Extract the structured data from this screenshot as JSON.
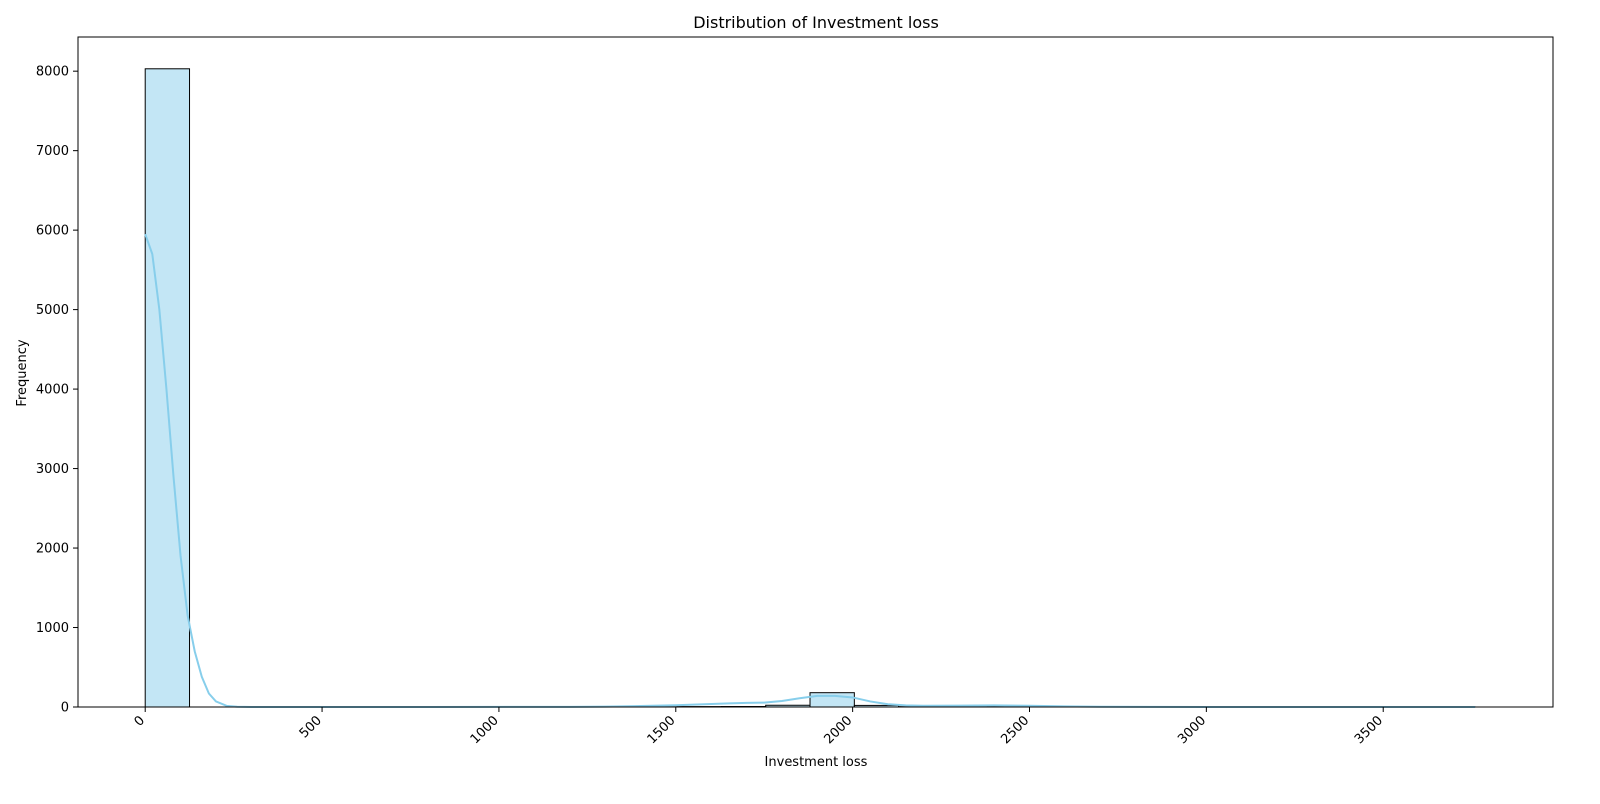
{
  "chart_data": {
    "type": "bar",
    "title": "Distribution of Investment loss",
    "xlabel": "Investment loss",
    "ylabel": "Frequency",
    "xlim": [
      -190,
      3980
    ],
    "ylim": [
      0,
      8430
    ],
    "x_ticks": [
      0,
      500,
      1000,
      1500,
      2000,
      2500,
      3000,
      3500
    ],
    "y_ticks": [
      0,
      1000,
      2000,
      3000,
      4000,
      5000,
      6000,
      7000,
      8000
    ],
    "bin_edges": [
      0,
      125.3,
      250.6,
      375.9,
      501.2,
      626.5,
      751.8,
      877.1,
      1002.4,
      1127.7,
      1253,
      1378.3,
      1503.6,
      1628.9,
      1754.2,
      1879.5,
      2004.8,
      2130.1,
      2255.4,
      2380.7,
      2506,
      2631.3,
      2756.6,
      2881.9,
      3007.2,
      3132.5,
      3257.8,
      3383.1,
      3508.4,
      3633.7,
      3759
    ],
    "values": [
      8030,
      0,
      0,
      0,
      0,
      0,
      0,
      0,
      0,
      0,
      2,
      3,
      5,
      6,
      22,
      180,
      20,
      4,
      3,
      5,
      2,
      0,
      0,
      0,
      0,
      0,
      0,
      0,
      0,
      2
    ],
    "kde": {
      "x": [
        0,
        20,
        40,
        60,
        80,
        100,
        120,
        140,
        160,
        180,
        200,
        230,
        260,
        300,
        400,
        800,
        1200,
        1300,
        1400,
        1500,
        1550,
        1600,
        1650,
        1700,
        1750,
        1800,
        1850,
        1900,
        1950,
        2000,
        2050,
        2100,
        2150,
        2200,
        2300,
        2400,
        2500,
        2600,
        2700,
        3000,
        3500,
        3760
      ],
      "y": [
        5950,
        5700,
        5000,
        4000,
        2900,
        1900,
        1150,
        700,
        380,
        170,
        70,
        15,
        3,
        0,
        0,
        0,
        2,
        5,
        12,
        22,
        30,
        38,
        45,
        52,
        55,
        75,
        110,
        140,
        140,
        120,
        70,
        35,
        20,
        15,
        18,
        20,
        15,
        8,
        3,
        0,
        0,
        0
      ]
    },
    "colors": {
      "fill": "#87ceeb",
      "kde": "#87ceeb",
      "edge": "#000000"
    },
    "grid": false,
    "legend": "none"
  }
}
